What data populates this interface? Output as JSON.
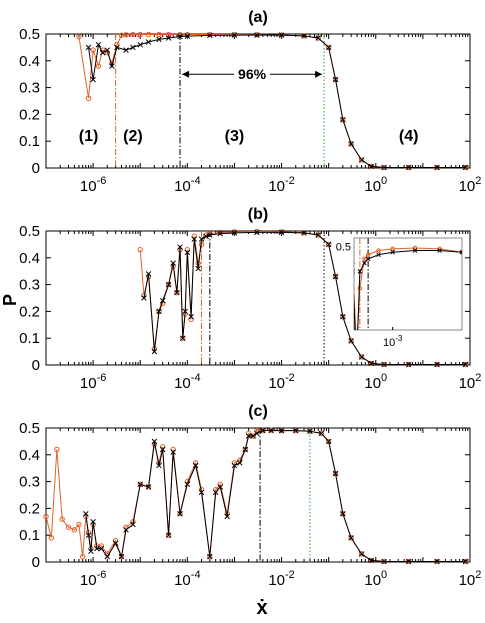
{
  "figure": {
    "ylabel": "P",
    "xlabel": "ẋ"
  },
  "colors": {
    "series_orange": "#e0622a",
    "series_black": "#000000",
    "line_orange": "#e0622a",
    "line_black": "#000000",
    "line_green": "#22aa22"
  },
  "chart_data": [
    {
      "type": "line",
      "title": "(a)",
      "xscale": "log",
      "xlim": [
        1e-07,
        100
      ],
      "ylim": [
        0,
        0.5
      ],
      "xticks": [
        {
          "v": 1e-06,
          "b": "10",
          "e": "-6"
        },
        {
          "v": 0.0001,
          "b": "10",
          "e": "-4"
        },
        {
          "v": 0.01,
          "b": "10",
          "e": "-2"
        },
        {
          "v": 1,
          "b": "10",
          "e": "0"
        },
        {
          "v": 100,
          "b": "10",
          "e": "2"
        }
      ],
      "yticks": [
        "0",
        "0.1",
        "0.2",
        "0.3",
        "0.4",
        "0.5"
      ],
      "vlines": [
        {
          "x": 3e-06,
          "color": "orange",
          "style": "dashdot"
        },
        {
          "x": 7e-05,
          "color": "black",
          "style": "dashdot"
        },
        {
          "x": 0.08,
          "color": "green",
          "style": "dotted"
        }
      ],
      "annotations": [
        {
          "text": "96%",
          "x1": 7e-05,
          "x2": 0.08,
          "y": 0.35,
          "kind": "double-arrow"
        },
        {
          "text": "(1)",
          "x": 8e-07,
          "y": 0.12
        },
        {
          "text": "(2)",
          "x": 7e-06,
          "y": 0.12
        },
        {
          "text": "(3)",
          "x": 0.001,
          "y": 0.12
        },
        {
          "text": "(4)",
          "x": 5,
          "y": 0.12
        }
      ],
      "series": [
        {
          "color": "orange",
          "marker": "circle",
          "x": [
            5e-07,
            8e-07,
            1e-06,
            1.3e-06,
            1.6e-06,
            2e-06,
            2.5e-06,
            3.2e-06,
            4e-06,
            5e-06,
            7e-06,
            1e-05,
            1.5e-05,
            2.5e-05,
            4e-05,
            7e-05,
            0.0001,
            0.0003,
            0.001,
            0.003,
            0.01,
            0.03,
            0.06,
            0.1,
            0.14,
            0.2,
            0.3,
            0.5,
            0.8,
            1.5,
            5,
            20,
            80
          ],
          "y": [
            0.49,
            0.26,
            0.44,
            0.38,
            0.44,
            0.43,
            0.39,
            0.46,
            0.495,
            0.497,
            0.498,
            0.498,
            0.498,
            0.498,
            0.498,
            0.498,
            0.498,
            0.498,
            0.498,
            0.497,
            0.496,
            0.493,
            0.485,
            0.45,
            0.33,
            0.18,
            0.09,
            0.03,
            0.006,
            0.002,
            0.002,
            0.002,
            0.002
          ]
        },
        {
          "color": "black",
          "marker": "cross",
          "x": [
            8e-07,
            1e-06,
            1.3e-06,
            1.6e-06,
            2e-06,
            2.5e-06,
            3.2e-06,
            5e-06,
            7e-06,
            1e-05,
            1.5e-05,
            2.5e-05,
            4e-05,
            7e-05,
            0.0001,
            0.0003,
            0.001,
            0.003,
            0.01,
            0.03,
            0.06,
            0.1,
            0.14,
            0.2,
            0.3,
            0.5,
            0.8,
            1.5,
            5,
            20,
            80
          ],
          "y": [
            0.45,
            0.33,
            0.46,
            0.43,
            0.44,
            0.38,
            0.45,
            0.44,
            0.45,
            0.46,
            0.47,
            0.48,
            0.485,
            0.49,
            0.492,
            0.495,
            0.496,
            0.496,
            0.496,
            0.493,
            0.485,
            0.45,
            0.33,
            0.18,
            0.09,
            0.03,
            0.006,
            0.002,
            0.002,
            0.002,
            0.002
          ]
        }
      ]
    },
    {
      "type": "line",
      "title": "(b)",
      "xscale": "log",
      "xlim": [
        1e-07,
        100
      ],
      "ylim": [
        0,
        0.5
      ],
      "xticks": [
        {
          "v": 1e-06,
          "b": "10",
          "e": "-6"
        },
        {
          "v": 0.0001,
          "b": "10",
          "e": "-4"
        },
        {
          "v": 0.01,
          "b": "10",
          "e": "-2"
        },
        {
          "v": 1,
          "b": "10",
          "e": "0"
        },
        {
          "v": 100,
          "b": "10",
          "e": "2"
        }
      ],
      "yticks": [
        "0",
        "0.1",
        "0.2",
        "0.3",
        "0.4",
        "0.5"
      ],
      "vlines": [
        {
          "x": 0.0002,
          "color": "orange",
          "style": "dashdot"
        },
        {
          "x": 0.0003,
          "color": "black",
          "style": "dashdot"
        },
        {
          "x": 0.08,
          "color": "black",
          "style": "dotted"
        }
      ],
      "inset": {
        "ytick": "0.5",
        "xtick": {
          "b": "10",
          "e": "-3"
        },
        "xlim": [
          0.00015,
          0.03
        ],
        "ylim": [
          0.4,
          0.51
        ]
      },
      "series": [
        {
          "color": "orange",
          "marker": "circle",
          "x": [
            1e-05,
            1.2e-05,
            1.5e-05,
            2e-05,
            2.5e-05,
            3e-05,
            4e-05,
            5e-05,
            6e-05,
            7e-05,
            8e-05,
            9e-05,
            0.0001,
            0.00012,
            0.00014,
            0.00017,
            0.0002,
            0.00025,
            0.0003,
            0.0005,
            0.001,
            0.003,
            0.01,
            0.03,
            0.06,
            0.1,
            0.14,
            0.2,
            0.3,
            0.5,
            0.8,
            1.5,
            5,
            20,
            80
          ],
          "y": [
            0.43,
            0.26,
            0.33,
            0.06,
            0.2,
            0.23,
            0.3,
            0.37,
            0.27,
            0.43,
            0.1,
            0.19,
            0.43,
            0.17,
            0.48,
            0.38,
            0.45,
            0.485,
            0.49,
            0.495,
            0.497,
            0.498,
            0.497,
            0.493,
            0.485,
            0.45,
            0.33,
            0.18,
            0.09,
            0.03,
            0.006,
            0.002,
            0.002,
            0.002,
            0.002
          ]
        },
        {
          "color": "black",
          "marker": "cross",
          "x": [
            1.2e-05,
            1.5e-05,
            2e-05,
            2.5e-05,
            3e-05,
            4e-05,
            5e-05,
            6e-05,
            7e-05,
            8e-05,
            9e-05,
            0.0001,
            0.00012,
            0.00014,
            0.00017,
            0.0002,
            0.00025,
            0.0003,
            0.0005,
            0.001,
            0.003,
            0.01,
            0.03,
            0.06,
            0.1,
            0.14,
            0.2,
            0.3,
            0.5,
            0.8,
            1.5,
            5,
            20,
            80
          ],
          "y": [
            0.25,
            0.34,
            0.05,
            0.2,
            0.24,
            0.3,
            0.38,
            0.27,
            0.44,
            0.1,
            0.2,
            0.42,
            0.18,
            0.47,
            0.36,
            0.47,
            0.48,
            0.485,
            0.49,
            0.493,
            0.495,
            0.495,
            0.493,
            0.485,
            0.45,
            0.33,
            0.18,
            0.09,
            0.03,
            0.006,
            0.002,
            0.002,
            0.002,
            0.002
          ]
        }
      ]
    },
    {
      "type": "line",
      "title": "(c)",
      "xscale": "log",
      "xlim": [
        1e-07,
        100
      ],
      "ylim": [
        0,
        0.5
      ],
      "xticks": [
        {
          "v": 1e-06,
          "b": "10",
          "e": "-6"
        },
        {
          "v": 0.0001,
          "b": "10",
          "e": "-4"
        },
        {
          "v": 0.01,
          "b": "10",
          "e": "-2"
        },
        {
          "v": 1,
          "b": "10",
          "e": "0"
        },
        {
          "v": 100,
          "b": "10",
          "e": "2"
        }
      ],
      "yticks": [
        "0",
        "0.1",
        "0.2",
        "0.3",
        "0.4",
        "0.5"
      ],
      "vlines": [
        {
          "x": 0.0035,
          "color": "black",
          "style": "dashdot"
        },
        {
          "x": 0.04,
          "color": "green",
          "style": "dotted"
        }
      ],
      "series": [
        {
          "color": "orange",
          "marker": "circle",
          "x": [
            1e-07,
            1.3e-07,
            1.7e-07,
            2.2e-07,
            3e-07,
            4e-07,
            5e-07,
            6e-07,
            7e-07,
            8e-07,
            9e-07,
            1e-06,
            1.2e-06,
            1.5e-06,
            2e-06,
            3e-06,
            4e-06,
            5e-06,
            7e-06,
            1e-05,
            1.5e-05,
            2e-05,
            2.5e-05,
            3e-05,
            4e-05,
            5e-05,
            7e-05,
            0.0001,
            0.00015,
            0.0002,
            0.0003,
            0.0004,
            0.0005,
            0.0007,
            0.001,
            0.0013,
            0.0017,
            0.002,
            0.0025,
            0.003,
            0.004,
            0.006,
            0.01,
            0.02,
            0.04,
            0.07,
            0.1,
            0.14,
            0.2,
            0.3,
            0.5,
            0.8,
            1.5,
            5,
            20,
            80
          ],
          "y": [
            0.17,
            0.09,
            0.42,
            0.16,
            0.13,
            0.12,
            0.14,
            0.02,
            0.17,
            0.11,
            0.05,
            0.14,
            0.06,
            0.06,
            0.03,
            0.08,
            0.02,
            0.13,
            0.15,
            0.29,
            0.28,
            0.44,
            0.37,
            0.43,
            0.1,
            0.42,
            0.18,
            0.3,
            0.37,
            0.27,
            0.02,
            0.27,
            0.29,
            0.18,
            0.37,
            0.38,
            0.42,
            0.48,
            0.47,
            0.49,
            0.49,
            0.492,
            0.49,
            0.49,
            0.488,
            0.48,
            0.45,
            0.33,
            0.18,
            0.09,
            0.03,
            0.006,
            0.002,
            0.002,
            0.002,
            0.002
          ]
        },
        {
          "color": "black",
          "marker": "cross",
          "x": [
            7e-07,
            8e-07,
            9e-07,
            1e-06,
            1.2e-06,
            1.5e-06,
            2e-06,
            3e-06,
            4e-06,
            5e-06,
            7e-06,
            1e-05,
            1.5e-05,
            2e-05,
            2.5e-05,
            3e-05,
            4e-05,
            5e-05,
            7e-05,
            0.0001,
            0.00015,
            0.0002,
            0.0003,
            0.0004,
            0.0005,
            0.0007,
            0.001,
            0.0013,
            0.0017,
            0.002,
            0.0025,
            0.003,
            0.004,
            0.006,
            0.01,
            0.02,
            0.04,
            0.07,
            0.1,
            0.14,
            0.2,
            0.3,
            0.5,
            0.8,
            1.5,
            5,
            20,
            80
          ],
          "y": [
            0.18,
            0.1,
            0.04,
            0.15,
            0.05,
            0.05,
            0.02,
            0.07,
            0.02,
            0.12,
            0.14,
            0.29,
            0.28,
            0.45,
            0.36,
            0.42,
            0.1,
            0.41,
            0.18,
            0.29,
            0.36,
            0.26,
            0.02,
            0.26,
            0.28,
            0.17,
            0.36,
            0.37,
            0.42,
            0.47,
            0.47,
            0.48,
            0.49,
            0.49,
            0.49,
            0.49,
            0.488,
            0.48,
            0.45,
            0.33,
            0.18,
            0.09,
            0.03,
            0.006,
            0.002,
            0.002,
            0.002,
            0.002
          ]
        }
      ]
    }
  ]
}
